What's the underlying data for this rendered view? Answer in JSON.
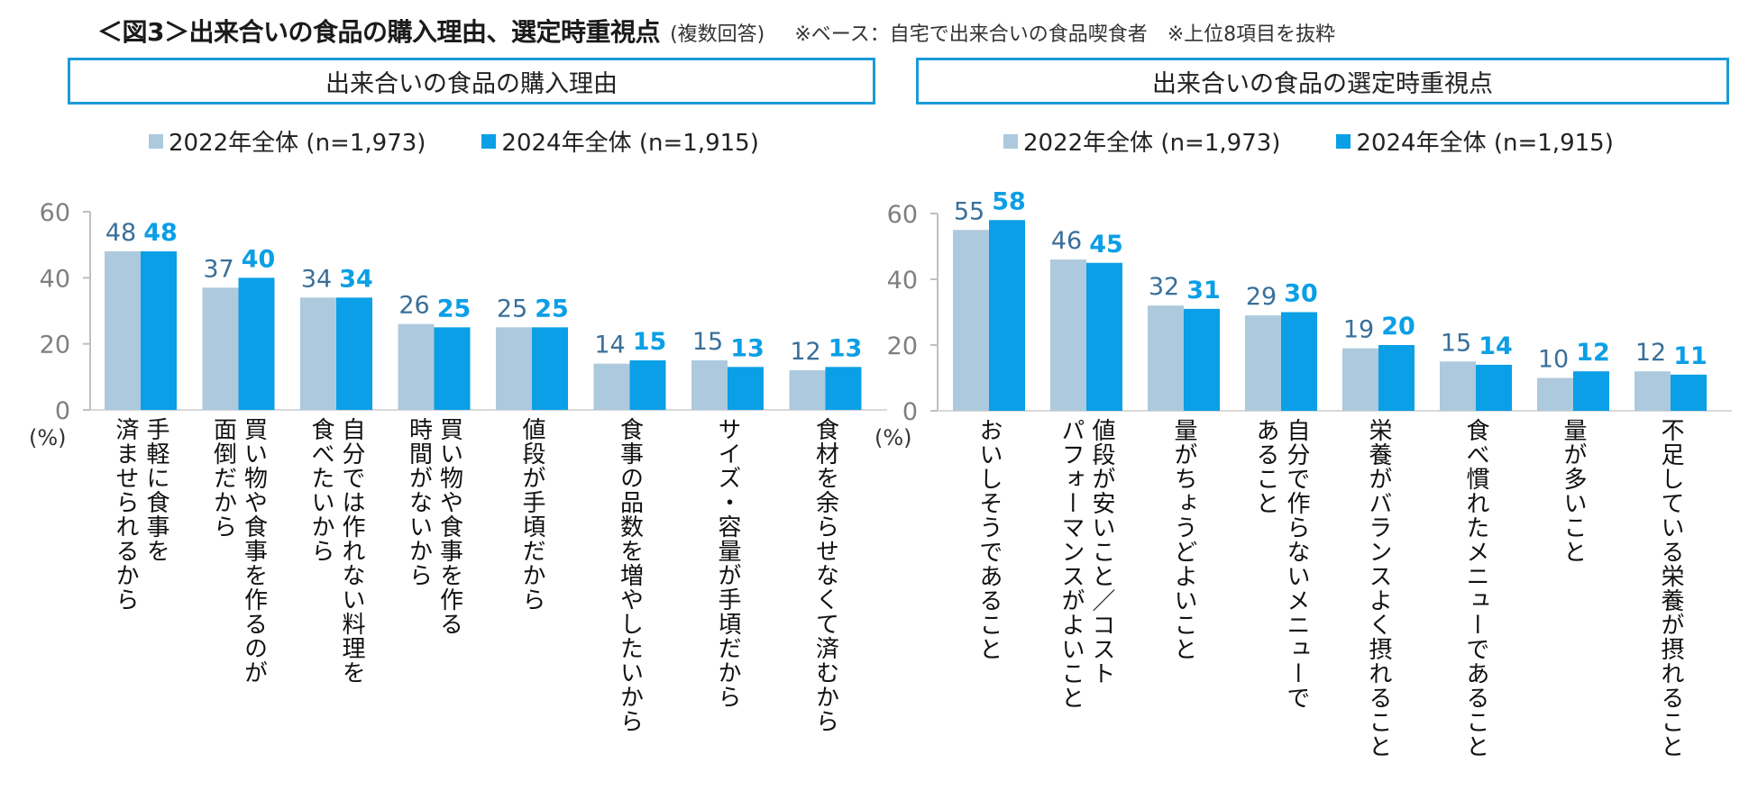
{
  "title": {
    "main": "＜図3＞出来合いの食品の購入理由、選定時重視点",
    "sub": "(複数回答)",
    "note": "※ベース：自宅で出来合いの食品喫食者　※上位8項目を抜粋"
  },
  "colors": {
    "series_2022": "#adc9dd",
    "series_2024": "#0a9fe6",
    "label_2022": "#3a6f99",
    "label_2024": "#0a9fe6",
    "axis": "#bfbfbf",
    "tick_text": "#7f7f7f",
    "panel_border": "#1a9ad8"
  },
  "chart_data": [
    {
      "type": "bar",
      "title": "出来合いの食品の購入理由",
      "ylabel": "(%)",
      "ylim": [
        0,
        60
      ],
      "yticks": [
        "0",
        "20",
        "40",
        "60"
      ],
      "legend_position": "top",
      "categories": [
        "手軽に食事を\n済ませられるから",
        "買い物や食事を作るのが\n面倒だから",
        "自分では作れない料理を\n食べたいから",
        "買い物や食事を作る\n時間がないから",
        "値段が手頃だから",
        "食事の品数を増やしたいから",
        "サイズ・容量が手頃だから",
        "食材を余らせなくて済むから"
      ],
      "series": [
        {
          "name": "2022年全体 (n=1,973)",
          "values": [
            48,
            37,
            34,
            26,
            25,
            14,
            15,
            12
          ]
        },
        {
          "name": "2024年全体 (n=1,915)",
          "values": [
            48,
            40,
            34,
            25,
            25,
            15,
            13,
            13
          ]
        }
      ]
    },
    {
      "type": "bar",
      "title": "出来合いの食品の選定時重視点",
      "ylabel": "(%)",
      "ylim": [
        0,
        60
      ],
      "yticks": [
        "0",
        "20",
        "40",
        "60"
      ],
      "legend_position": "top",
      "categories": [
        "おいしそうであること",
        "値段が安いこと／コスト\nパフォーマンスがよいこと",
        "量がちょうどよいこと",
        "自分で作らないメニューで\nあること",
        "栄養がバランスよく摂れること",
        "食べ慣れたメニューであること",
        "量が多いこと",
        "不足している栄養が摂れること"
      ],
      "series": [
        {
          "name": "2022年全体 (n=1,973)",
          "values": [
            55,
            46,
            32,
            29,
            19,
            15,
            10,
            12
          ]
        },
        {
          "name": "2024年全体 (n=1,915)",
          "values": [
            58,
            45,
            31,
            30,
            20,
            14,
            12,
            11
          ]
        }
      ]
    }
  ]
}
